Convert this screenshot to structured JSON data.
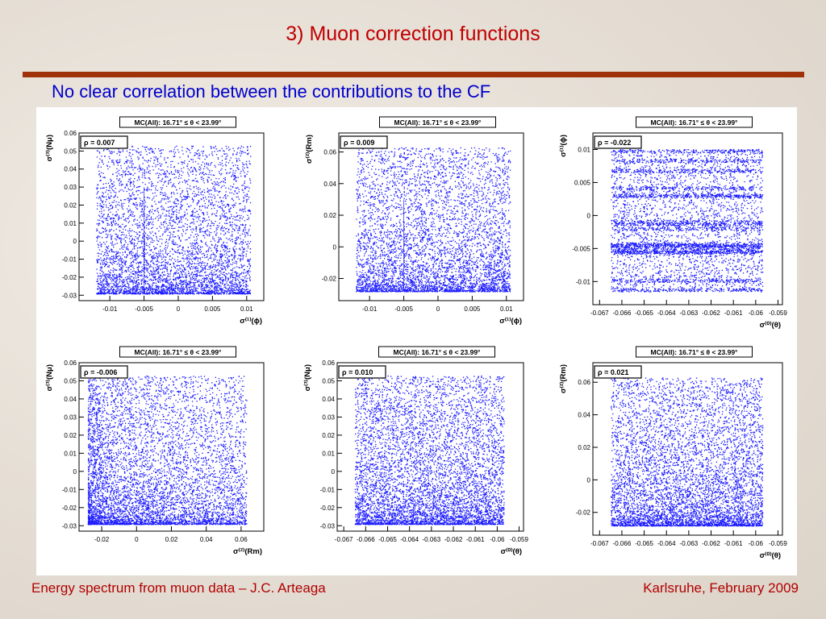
{
  "slide": {
    "title": "3) Muon correction functions",
    "subtitle": "No clear correlation between the contributions to the CF",
    "footer_left": "Energy spectrum from muon data – J.C. Arteaga",
    "footer_right": "Karlsruhe,  February 2009"
  },
  "colors": {
    "title": "#c00000",
    "subtitle": "#0000cc",
    "rule": "#a0320a",
    "points": "#1a1aff",
    "footer": "#b00000"
  },
  "chart_data": [
    {
      "type": "scatter",
      "title": "MC(All): 16.71° ≤ θ < 23.99°",
      "annotation": "ρ = 0.007",
      "xlabel": "σ⁽¹⁾(ϕ)",
      "ylabel": "σ⁽³⁾(Nμ)",
      "xlim": [
        -0.0145,
        0.0125
      ],
      "ylim": [
        -0.033,
        0.06
      ],
      "xticks": [
        -0.01,
        -0.005,
        0,
        0.005,
        0.01
      ],
      "xticklabels": [
        "-0.01",
        "-0.005",
        "0",
        "0.005",
        "0.01"
      ],
      "yticks": [
        -0.03,
        -0.02,
        -0.01,
        0,
        0.01,
        0.02,
        0.03,
        0.04,
        0.05,
        0.06
      ],
      "yticklabels": [
        "-0.03",
        "-0.02",
        "-0.01",
        "0",
        "0.01",
        "0.02",
        "0.03",
        "0.04",
        "0.05",
        "0.06"
      ],
      "point_region": {
        "x": [
          -0.012,
          0.0105
        ],
        "y": [
          -0.029,
          0.053
        ]
      },
      "density_bias": "bottom",
      "vertical_edge_x": -0.005,
      "n_points": 5000
    },
    {
      "type": "scatter",
      "title": "MC(All): 16.71° ≤ θ < 23.99°",
      "annotation": "ρ = 0.009",
      "xlabel": "σ⁽¹⁾(ϕ)",
      "ylabel": "σ⁽²⁾(Rm)",
      "xlim": [
        -0.0145,
        0.0125
      ],
      "ylim": [
        -0.034,
        0.072
      ],
      "xticks": [
        -0.01,
        -0.005,
        0,
        0.005,
        0.01
      ],
      "xticklabels": [
        "-0.01",
        "-0.005",
        "0",
        "0.005",
        "0.01"
      ],
      "yticks": [
        -0.02,
        0,
        0.02,
        0.04,
        0.06
      ],
      "yticklabels": [
        "-0.02",
        "0",
        "0.02",
        "0.04",
        "0.06"
      ],
      "point_region": {
        "x": [
          -0.012,
          0.0105
        ],
        "y": [
          -0.028,
          0.063
        ]
      },
      "density_bias": "bottom",
      "vertical_edge_x": -0.005,
      "n_points": 5000
    },
    {
      "type": "scatter",
      "title": "MC(All): 16.71° ≤ θ < 23.99°",
      "annotation": "ρ = -0.022",
      "xlabel": "σ⁽⁰⁾(θ)",
      "ylabel": "σ⁽¹⁾(ϕ)",
      "xlim": [
        -0.0673,
        -0.0588
      ],
      "ylim": [
        -0.0135,
        0.0125
      ],
      "xticks": [
        -0.067,
        -0.066,
        -0.065,
        -0.064,
        -0.063,
        -0.062,
        -0.061,
        -0.06,
        -0.059
      ],
      "xticklabels": [
        "-0.067",
        "-0.066",
        "-0.065",
        "-0.064",
        "-0.063",
        "-0.062",
        "-0.061",
        "-0.06",
        "-0.059"
      ],
      "yticks": [
        -0.01,
        -0.005,
        0,
        0.005,
        0.01
      ],
      "yticklabels": [
        "-0.01",
        "-0.005",
        "0",
        "0.005",
        "0.01"
      ],
      "point_region": {
        "x": [
          -0.0665,
          -0.0597
        ],
        "y": [
          -0.0115,
          0.0101
        ]
      },
      "density_bias": "banded",
      "vertical_edge_x": null,
      "n_points": 6000
    },
    {
      "type": "scatter",
      "title": "MC(All): 16.71° ≤ θ < 23.99°",
      "annotation": "ρ = -0.006",
      "xlabel": "σ⁽²⁾(Rm)",
      "ylabel": "σ⁽³⁾(Nμ)",
      "xlim": [
        -0.033,
        0.073
      ],
      "ylim": [
        -0.033,
        0.06
      ],
      "xticks": [
        -0.02,
        0,
        0.02,
        0.04,
        0.06
      ],
      "xticklabels": [
        "-0.02",
        "0",
        "0.02",
        "0.04",
        "0.06"
      ],
      "yticks": [
        -0.03,
        -0.02,
        -0.01,
        0,
        0.01,
        0.02,
        0.03,
        0.04,
        0.05,
        0.06
      ],
      "yticklabels": [
        "-0.03",
        "-0.02",
        "-0.01",
        "0",
        "0.01",
        "0.02",
        "0.03",
        "0.04",
        "0.05",
        "0.06"
      ],
      "point_region": {
        "x": [
          -0.028,
          0.063
        ],
        "y": [
          -0.029,
          0.053
        ]
      },
      "density_bias": "bottom-left",
      "vertical_edge_x": null,
      "n_points": 6000
    },
    {
      "type": "scatter",
      "title": "MC(All): 16.71° ≤ θ < 23.99°",
      "annotation": "ρ = 0.010",
      "xlabel": "σ⁽⁰⁾(θ)",
      "ylabel": "σ⁽³⁾(Nμ)",
      "xlim": [
        -0.0673,
        -0.0588
      ],
      "ylim": [
        -0.033,
        0.06
      ],
      "xticks": [
        -0.067,
        -0.066,
        -0.065,
        -0.064,
        -0.063,
        -0.062,
        -0.061,
        -0.06,
        -0.059
      ],
      "xticklabels": [
        "-0.067",
        "-0.066",
        "-0.065",
        "-0.064",
        "-0.063",
        "-0.062",
        "-0.061",
        "-0.06",
        "-0.059"
      ],
      "yticks": [
        -0.03,
        -0.02,
        -0.01,
        0,
        0.01,
        0.02,
        0.03,
        0.04,
        0.05,
        0.06
      ],
      "yticklabels": [
        "-0.03",
        "-0.02",
        "-0.01",
        "0",
        "0.01",
        "0.02",
        "0.03",
        "0.04",
        "0.05",
        "0.06"
      ],
      "point_region": {
        "x": [
          -0.0665,
          -0.0597
        ],
        "y": [
          -0.029,
          0.053
        ]
      },
      "density_bias": "bottom",
      "vertical_edge_x": null,
      "n_points": 6000
    },
    {
      "type": "scatter",
      "title": "MC(All): 16.71° ≤ θ < 23.99°",
      "annotation": "ρ = 0.021",
      "xlabel": "σ⁽⁰⁾(θ)",
      "ylabel": "σ⁽²⁾(Rm)",
      "xlim": [
        -0.0673,
        -0.0588
      ],
      "ylim": [
        -0.034,
        0.072
      ],
      "xticks": [
        -0.067,
        -0.066,
        -0.065,
        -0.064,
        -0.063,
        -0.062,
        -0.061,
        -0.06,
        -0.059
      ],
      "xticklabels": [
        "-0.067",
        "-0.066",
        "-0.065",
        "-0.064",
        "-0.063",
        "-0.062",
        "-0.061",
        "-0.06",
        "-0.059"
      ],
      "yticks": [
        -0.02,
        0,
        0.02,
        0.04,
        0.06
      ],
      "yticklabels": [
        "-0.02",
        "0",
        "0.02",
        "0.04",
        "0.06"
      ],
      "point_region": {
        "x": [
          -0.0665,
          -0.0597
        ],
        "y": [
          -0.028,
          0.063
        ]
      },
      "density_bias": "bottom",
      "vertical_edge_x": null,
      "n_points": 6000
    }
  ]
}
